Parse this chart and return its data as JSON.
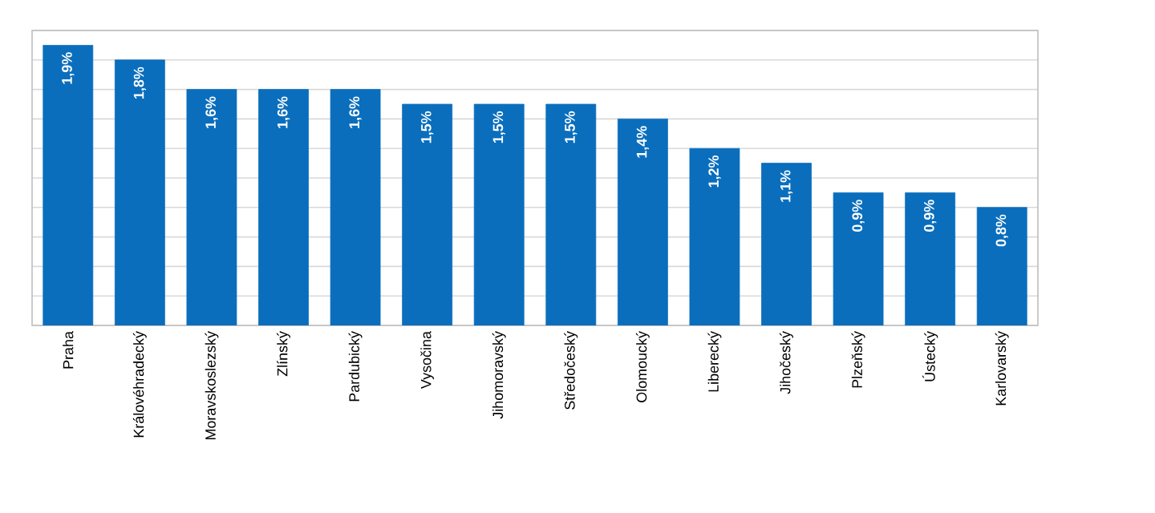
{
  "chart_data": {
    "type": "bar",
    "categories": [
      "Praha",
      "Královéhradecký",
      "Moravskoslezský",
      "Zlínský",
      "Pardubický",
      "Vysočina",
      "Jihomoravský",
      "Středočeský",
      "Olomoucký",
      "Liberecký",
      "Jihočeský",
      "Plzeňský",
      "Ústecký",
      "Karlovarský"
    ],
    "values": [
      1.9,
      1.8,
      1.6,
      1.6,
      1.6,
      1.5,
      1.5,
      1.5,
      1.4,
      1.2,
      1.1,
      0.9,
      0.9,
      0.8
    ],
    "value_labels": [
      "1,9%",
      "1,8%",
      "1,6%",
      "1,6%",
      "1,6%",
      "1,5%",
      "1,5%",
      "1,5%",
      "1,4%",
      "1,2%",
      "1,1%",
      "0,9%",
      "0,9%",
      "0,8%"
    ],
    "color": "#0a6ebd",
    "ylim": [
      0,
      2.0
    ],
    "yticks": [
      {
        "value": 0,
        "label": null
      },
      {
        "value": 0.2,
        "label": null
      },
      {
        "value": 0.4,
        "label": null
      },
      {
        "value": 0.6,
        "label": null
      },
      {
        "value": 0.8,
        "label": null
      },
      {
        "value": 1.0,
        "label": null
      },
      {
        "value": 1.2,
        "label": null
      },
      {
        "value": 1.4,
        "label": null
      },
      {
        "value": 1.6,
        "label": null
      },
      {
        "value": 1.8,
        "label": null
      },
      {
        "value": 2.0,
        "label": null
      }
    ],
    "grid": "y",
    "tick_labels": "x"
  }
}
